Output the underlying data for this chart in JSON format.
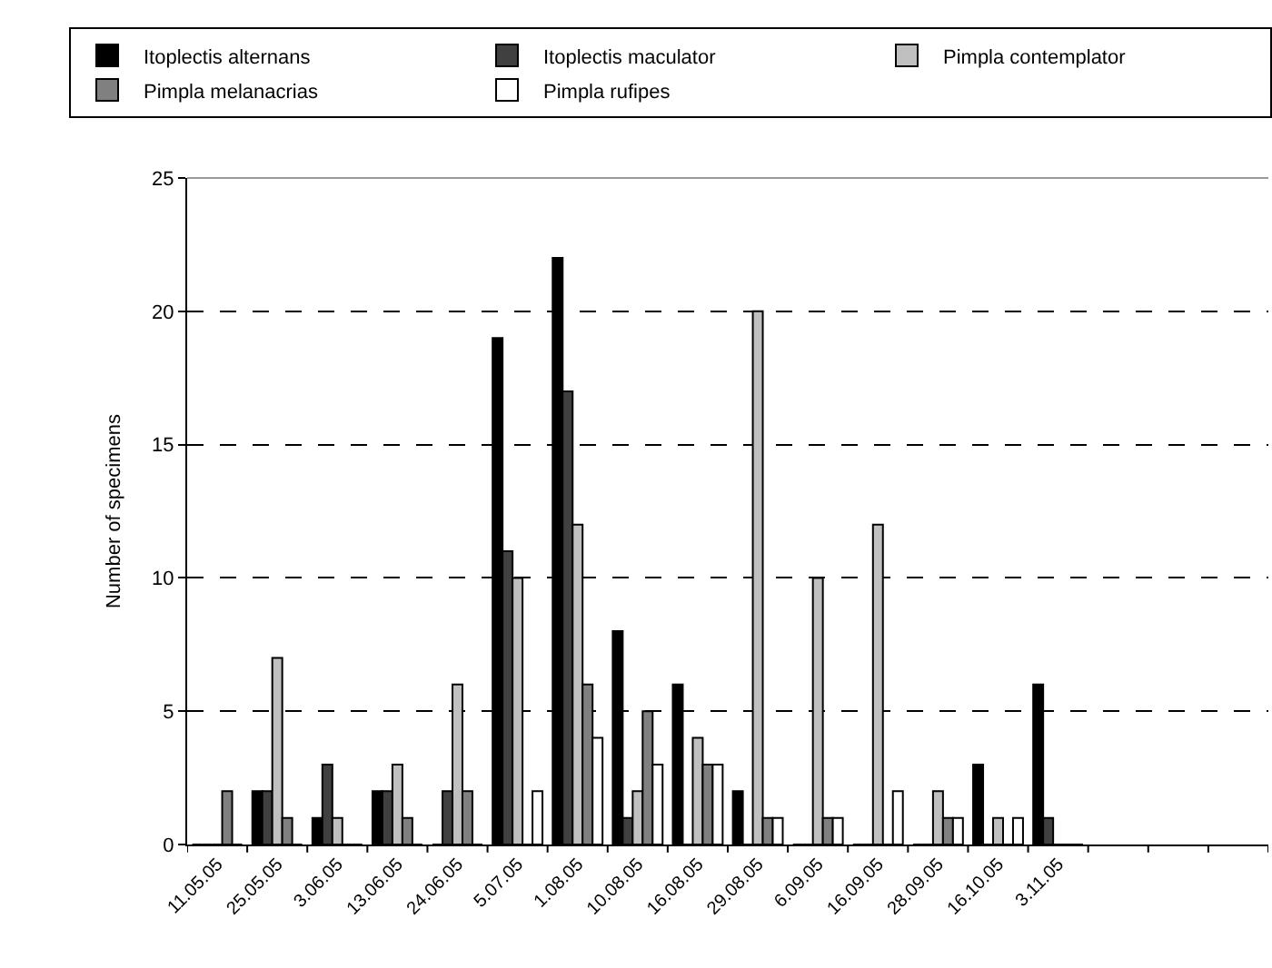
{
  "chart_data": {
    "type": "bar",
    "categories": [
      "11.05.05",
      "25.05.05",
      "3.06.05",
      "13.06.05",
      "24.06.05",
      "5.07.05",
      "1.08.05",
      "10.08.05",
      "16.08.05",
      "29.08.05",
      "6.09.05",
      "16.09.05",
      "28.09.05",
      "16.10.05",
      "3.11.05",
      null,
      null,
      null
    ],
    "series": [
      {
        "name": "Itoplectis alternans",
        "color": "#000000",
        "values": [
          0,
          2,
          1,
          2,
          0,
          19,
          22,
          8,
          6,
          2,
          0,
          0,
          0,
          3,
          6,
          null,
          null,
          null
        ]
      },
      {
        "name": "Itoplectis maculator",
        "color": "#404040",
        "values": [
          0,
          2,
          3,
          2,
          2,
          11,
          17,
          1,
          0,
          0,
          0,
          0,
          0,
          0,
          1,
          null,
          null,
          null
        ]
      },
      {
        "name": "Pimpla contemplator",
        "color": "#c0c0c0",
        "values": [
          0,
          7,
          1,
          3,
          6,
          10,
          12,
          2,
          4,
          20,
          10,
          12,
          2,
          1,
          0,
          null,
          null,
          null
        ]
      },
      {
        "name": "Pimpla melanacrias",
        "color": "#808080",
        "values": [
          2,
          1,
          0,
          1,
          2,
          0,
          6,
          5,
          3,
          1,
          1,
          0,
          1,
          0,
          0,
          null,
          null,
          null
        ]
      },
      {
        "name": "Pimpla rufipes",
        "color": "#ffffff",
        "values": [
          0,
          0,
          0,
          0,
          0,
          2,
          4,
          3,
          3,
          1,
          1,
          2,
          1,
          1,
          0,
          null,
          null,
          null
        ]
      }
    ],
    "ylabel": "Number of specimens",
    "ylim": [
      0,
      25
    ],
    "yticks": [
      0,
      5,
      10,
      15,
      20,
      25
    ],
    "grid": "y",
    "legend": "top"
  }
}
